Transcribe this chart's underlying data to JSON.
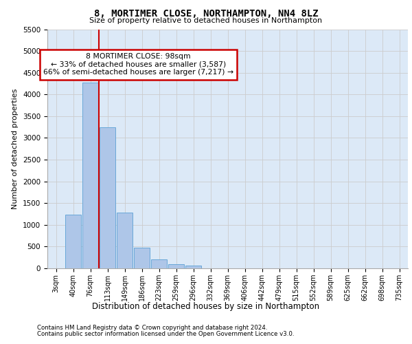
{
  "title1": "8, MORTIMER CLOSE, NORTHAMPTON, NN4 8LZ",
  "title2": "Size of property relative to detached houses in Northampton",
  "xlabel": "Distribution of detached houses by size in Northampton",
  "ylabel": "Number of detached properties",
  "categories": [
    "3sqm",
    "40sqm",
    "76sqm",
    "113sqm",
    "149sqm",
    "186sqm",
    "223sqm",
    "259sqm",
    "296sqm",
    "332sqm",
    "369sqm",
    "406sqm",
    "442sqm",
    "479sqm",
    "515sqm",
    "552sqm",
    "589sqm",
    "625sqm",
    "662sqm",
    "698sqm",
    "735sqm"
  ],
  "bar_values": [
    0,
    1230,
    4280,
    3250,
    1280,
    470,
    200,
    90,
    60,
    0,
    0,
    0,
    0,
    0,
    0,
    0,
    0,
    0,
    0,
    0,
    0
  ],
  "bar_color": "#aec6e8",
  "bar_edge_color": "#5a9fd4",
  "annotation_text": "8 MORTIMER CLOSE: 98sqm\n← 33% of detached houses are smaller (3,587)\n66% of semi-detached houses are larger (7,217) →",
  "annotation_box_color": "#ffffff",
  "annotation_box_edge": "#cc0000",
  "ylim": [
    0,
    5500
  ],
  "yticks": [
    0,
    500,
    1000,
    1500,
    2000,
    2500,
    3000,
    3500,
    4000,
    4500,
    5000,
    5500
  ],
  "grid_color": "#cccccc",
  "background_color": "#dce9f7",
  "footer_line1": "Contains HM Land Registry data © Crown copyright and database right 2024.",
  "footer_line2": "Contains public sector information licensed under the Open Government Licence v3.0."
}
